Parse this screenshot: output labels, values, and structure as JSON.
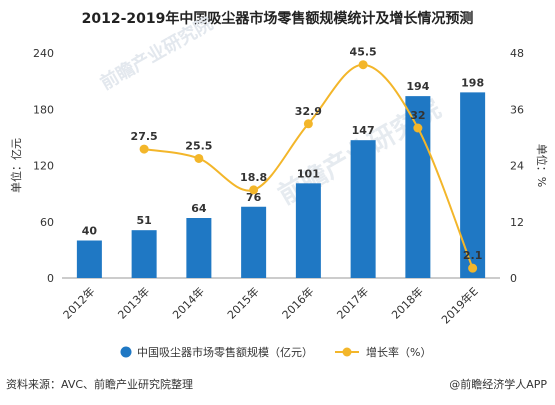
{
  "source_text": "资料来源：AVC、前瞻产业研究院整理",
  "brand_text": "@前瞻经济学人APP",
  "watermark": {
    "text": "前瞻产业研究院",
    "sub": "前瞻产业研究院"
  },
  "colors": {
    "bar": "#1f78c4",
    "line": "#f3b62a",
    "axis": "#999999",
    "text": "#333333"
  },
  "chart_data": {
    "type": "bar",
    "title": "2012-2019年中国吸尘器市场零售额规模统计及增长情况预测",
    "categories": [
      "2012年",
      "2013年",
      "2014年",
      "2015年",
      "2016年",
      "2017年",
      "2018年",
      "2019年E"
    ],
    "series": [
      {
        "name": "中国吸尘器市场零售额规模（亿元）",
        "type": "bar",
        "axis": "left",
        "values": [
          40,
          51,
          64,
          76,
          101,
          147,
          194,
          198
        ]
      },
      {
        "name": "增长率（%）",
        "type": "line",
        "axis": "right",
        "values": [
          null,
          27.5,
          25.5,
          18.8,
          32.9,
          45.5,
          32,
          2.1
        ]
      }
    ],
    "ylabel_left": "单位：亿元",
    "ylabel_right": "单位：%",
    "ylim_left": [
      0,
      240
    ],
    "yticks_left": [
      0,
      60,
      120,
      180,
      240
    ],
    "ylim_right": [
      0,
      48
    ],
    "yticks_right": [
      0,
      12,
      24,
      36,
      48
    ],
    "grid": false,
    "legend": "bottom"
  }
}
